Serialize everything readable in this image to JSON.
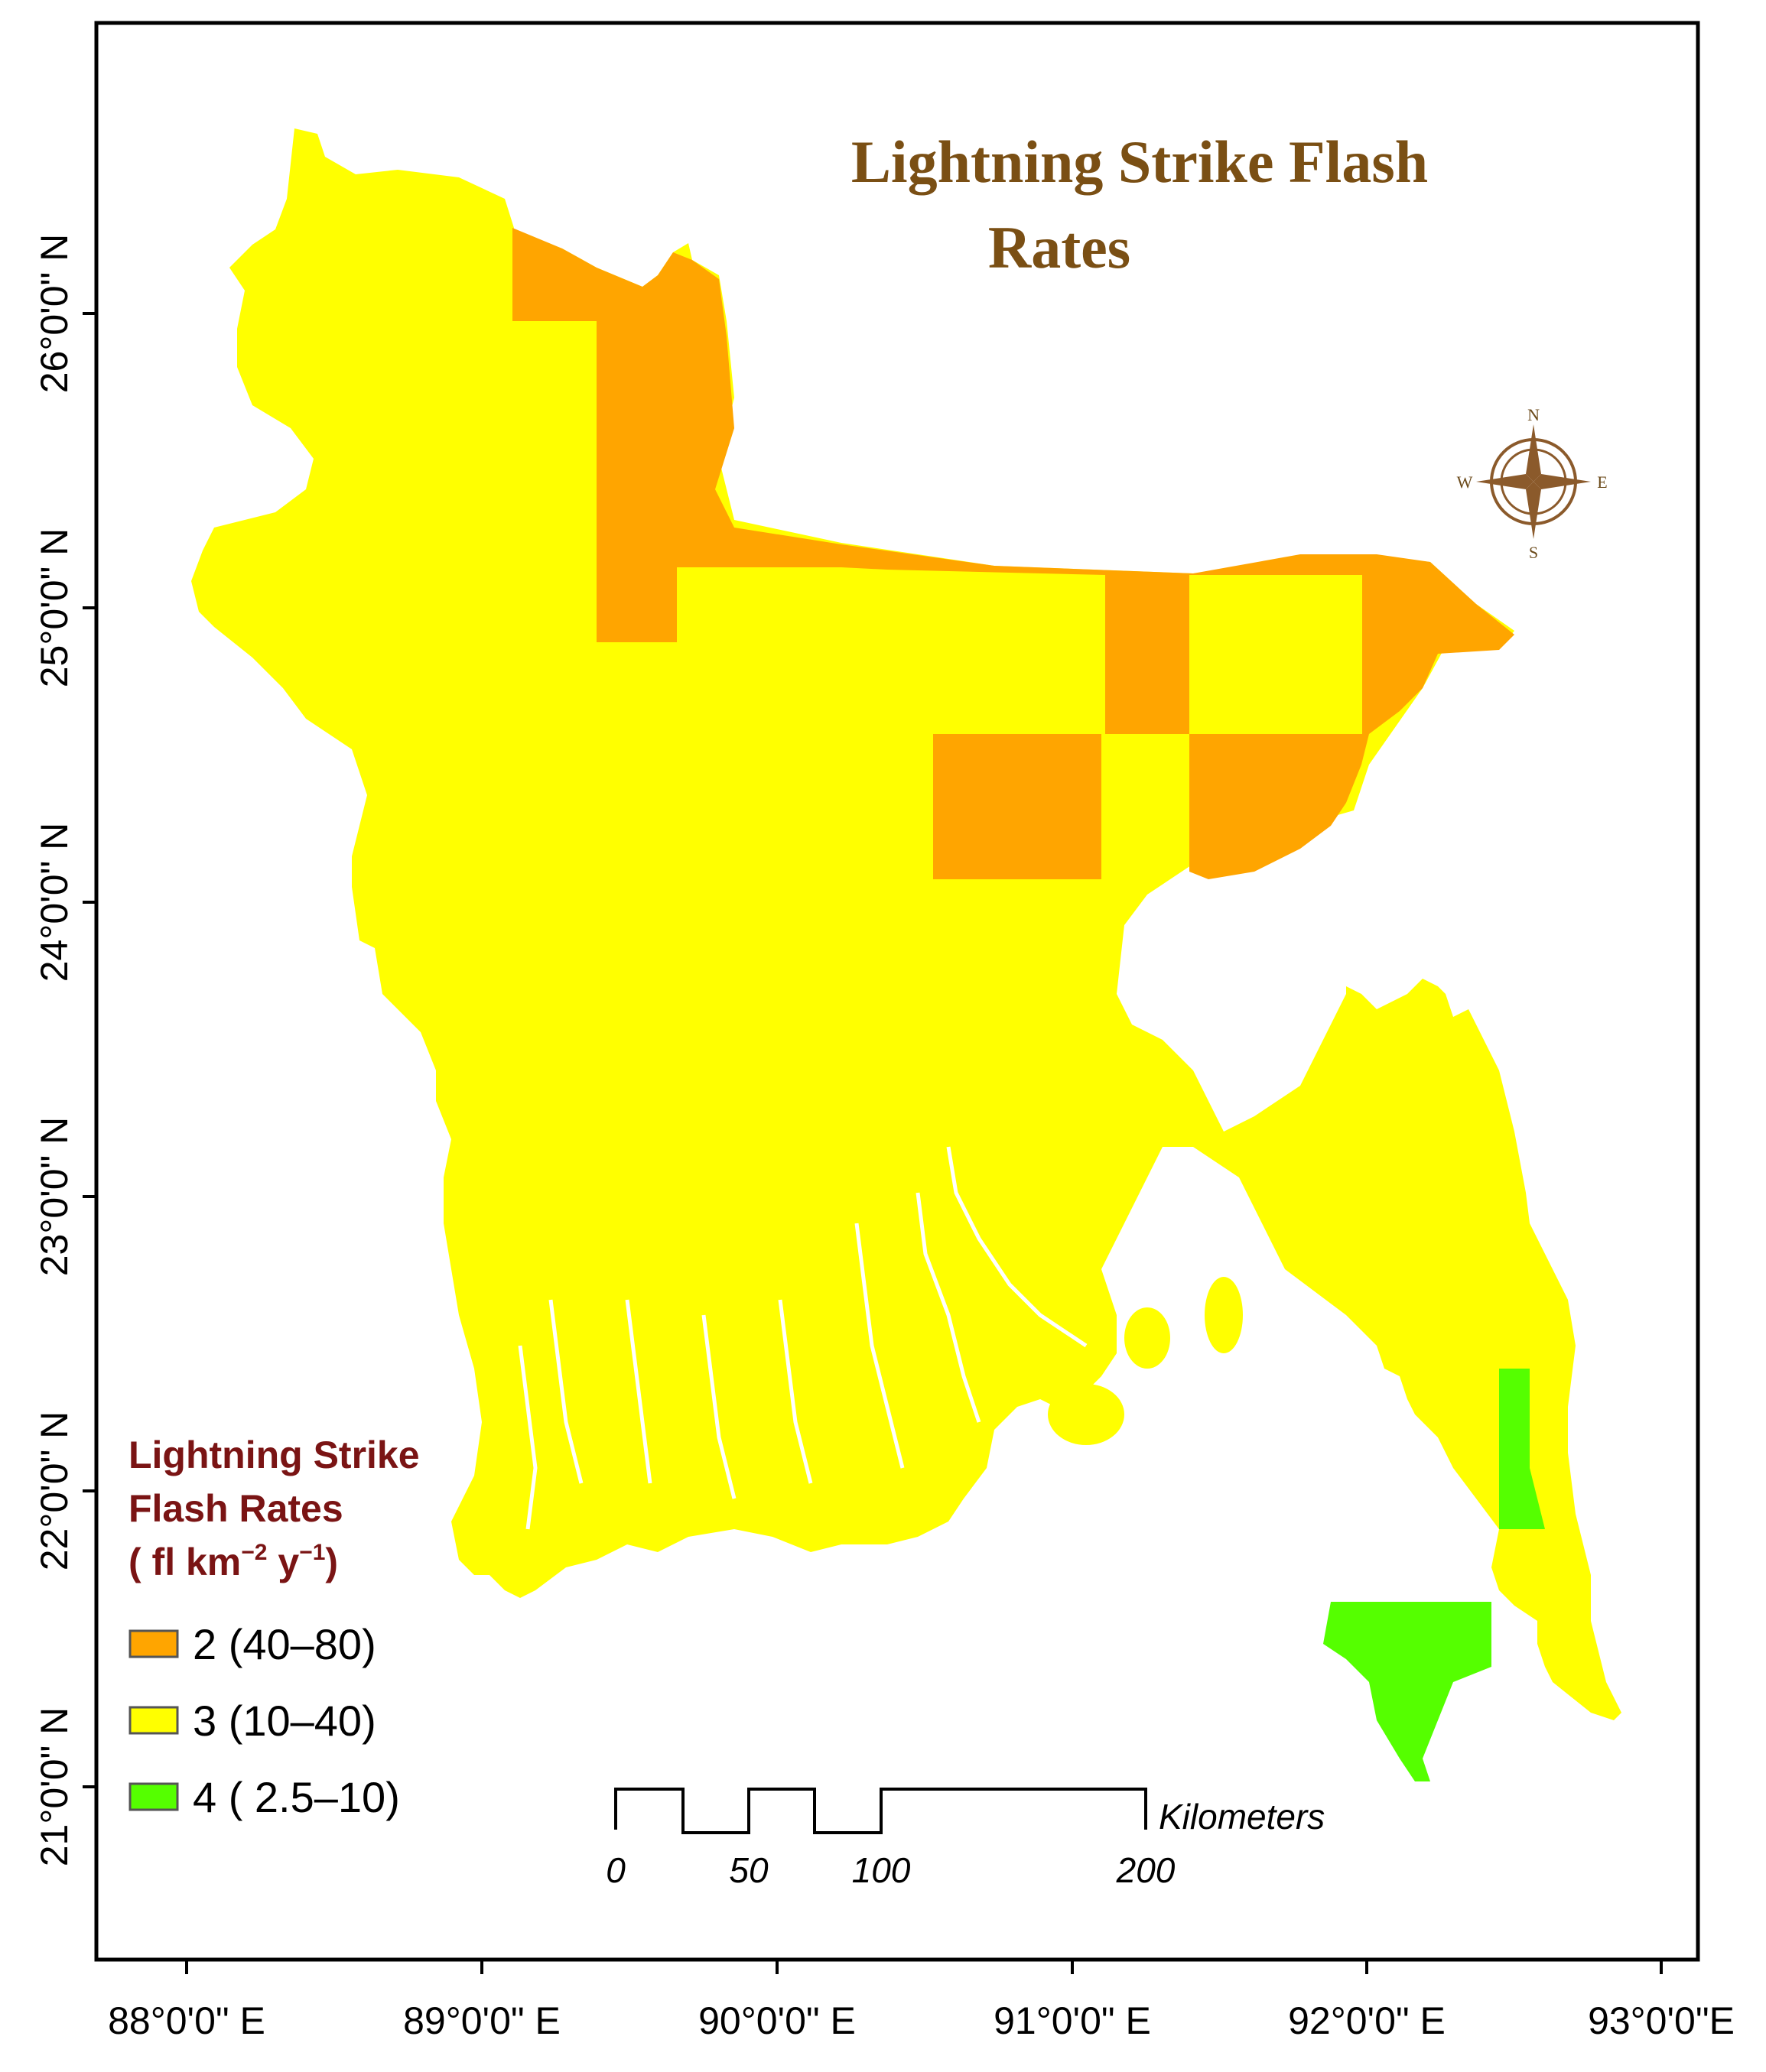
{
  "map": {
    "title_line1": "Lightning Strike Flash",
    "title_line2": "Rates",
    "frame_color": "#000000",
    "x_axis_labels": [
      "88°0'0\" E",
      "89°0'0\" E",
      "90°0'0\" E",
      "91°0'0\" E",
      "92°0'0\" E",
      "93°0'0\"E"
    ],
    "y_axis_labels": [
      "26°0'0\" N",
      "25°0'0\" N",
      "24°0'0\" N",
      "23°0'0\" N",
      "22°0'0\" N",
      "21°0'0\" N"
    ],
    "legend": {
      "title_line1": "Lightning Strike",
      "title_line2": "Flash Rates",
      "title_line3_prefix": "( fl km",
      "title_line3_sup1": "−2",
      "title_line3_mid": " y",
      "title_line3_sup2": "−1",
      "title_line3_suffix": ")",
      "items": [
        {
          "label": "2 (40–80)",
          "color": "#FFA500"
        },
        {
          "label": "3 (10–40)",
          "color": "#FFFF00"
        },
        {
          "label": "4 ( 2.5–10)",
          "color": "#55FF00"
        }
      ]
    },
    "scale_bar": {
      "ticks": [
        "0",
        "50",
        "100",
        "200"
      ],
      "unit": "Kilometers"
    },
    "compass": {
      "icon": "compass-rose-icon",
      "n": "N",
      "s": "S",
      "e": "E",
      "w": "W",
      "color": "#8B5A2B"
    }
  }
}
